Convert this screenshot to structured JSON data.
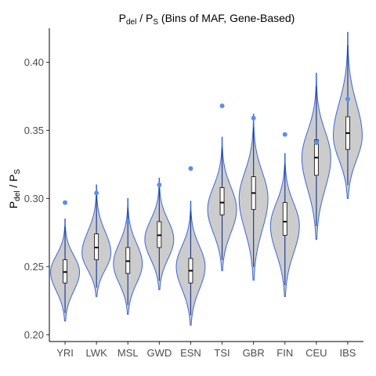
{
  "chart_data": {
    "type": "violin",
    "title": {
      "p": "P",
      "sub1": "del",
      "slash": " / P",
      "sub2": "S",
      "rest": " (Bins of MAF, Gene-Based)"
    },
    "ylabel": {
      "p1": "P",
      "sub1": "del",
      "slash": " / P",
      "sub2": "S"
    },
    "categories": [
      "YRI",
      "LWK",
      "MSL",
      "GWD",
      "ESN",
      "TSI",
      "GBR",
      "FIN",
      "CEU",
      "IBS"
    ],
    "ylim": [
      0.195,
      0.425
    ],
    "yticks": [
      0.2,
      0.25,
      0.3,
      0.35,
      0.4
    ],
    "ytick_labels": [
      "0.20",
      "0.25",
      "0.30",
      "0.35",
      "0.40"
    ],
    "fill_color": "#cccccc",
    "outline_color": "#3a66d9",
    "outlier_color": "#5b8ff0",
    "grid": false,
    "groups": [
      {
        "name": "YRI",
        "min": 0.21,
        "max": 0.285,
        "q1": 0.238,
        "median": 0.246,
        "q3": 0.255,
        "mode": 0.246,
        "outliers": [
          0.297
        ]
      },
      {
        "name": "LWK",
        "min": 0.228,
        "max": 0.31,
        "q1": 0.255,
        "median": 0.264,
        "q3": 0.274,
        "mode": 0.26,
        "outliers": [
          0.304
        ]
      },
      {
        "name": "MSL",
        "min": 0.215,
        "max": 0.3,
        "q1": 0.245,
        "median": 0.254,
        "q3": 0.264,
        "mode": 0.252,
        "outliers": [
          0.283
        ]
      },
      {
        "name": "GWD",
        "min": 0.233,
        "max": 0.315,
        "q1": 0.264,
        "median": 0.273,
        "q3": 0.283,
        "mode": 0.27,
        "outliers": [
          0.31
        ]
      },
      {
        "name": "ESN",
        "min": 0.207,
        "max": 0.298,
        "q1": 0.238,
        "median": 0.247,
        "q3": 0.256,
        "mode": 0.25,
        "outliers": [
          0.322
        ]
      },
      {
        "name": "TSI",
        "min": 0.247,
        "max": 0.345,
        "q1": 0.288,
        "median": 0.297,
        "q3": 0.308,
        "mode": 0.292,
        "outliers": [
          0.368
        ]
      },
      {
        "name": "GBR",
        "min": 0.24,
        "max": 0.362,
        "q1": 0.292,
        "median": 0.304,
        "q3": 0.316,
        "mode": 0.3,
        "outliers": [
          0.359
        ]
      },
      {
        "name": "FIN",
        "min": 0.228,
        "max": 0.333,
        "q1": 0.273,
        "median": 0.283,
        "q3": 0.297,
        "mode": 0.28,
        "outliers": [
          0.347
        ]
      },
      {
        "name": "CEU",
        "min": 0.27,
        "max": 0.392,
        "q1": 0.317,
        "median": 0.33,
        "q3": 0.343,
        "mode": 0.33,
        "outliers": [
          0.341
        ]
      },
      {
        "name": "IBS",
        "min": 0.3,
        "max": 0.422,
        "q1": 0.336,
        "median": 0.348,
        "q3": 0.36,
        "mode": 0.346,
        "outliers": [
          0.373
        ]
      }
    ]
  }
}
